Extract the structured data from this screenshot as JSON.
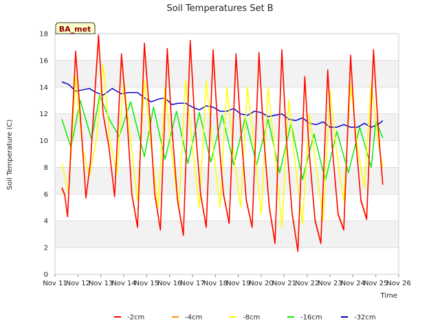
{
  "chart_data": {
    "type": "line",
    "title": "Soil Temperatures Set B",
    "xlabel": "Time",
    "ylabel": "Soil Temperature (C)",
    "badge": "BA_met",
    "xlim": [
      0,
      15
    ],
    "ylim": [
      0,
      18
    ],
    "x_tick_labels": [
      "Nov 11",
      "Nov 12",
      "Nov 13",
      "Nov 14",
      "Nov 15",
      "Nov 16",
      "Nov 17",
      "Nov 18",
      "Nov 19",
      "Nov 20",
      "Nov 21",
      "Nov 22",
      "Nov 23",
      "Nov 24",
      "Nov 25",
      "Nov 26"
    ],
    "y_ticks": [
      0,
      2,
      4,
      6,
      8,
      10,
      12,
      14,
      16,
      18
    ],
    "grid": true,
    "legend_position": "bottom",
    "x_unit": "days since Nov 11 00:00",
    "series": [
      {
        "name": "-2cm",
        "color": "#ff0000",
        "x": [
          0.3,
          0.42,
          0.55,
          0.68,
          0.9,
          1.1,
          1.35,
          1.55,
          1.9,
          2.1,
          2.35,
          2.6,
          2.9,
          3.15,
          3.35,
          3.6,
          3.9,
          4.15,
          4.35,
          4.6,
          4.9,
          5.1,
          5.35,
          5.6,
          5.9,
          6.1,
          6.35,
          6.6,
          6.9,
          7.1,
          7.35,
          7.6,
          7.9,
          8.1,
          8.35,
          8.6,
          8.9,
          9.1,
          9.35,
          9.6,
          9.9,
          10.1,
          10.35,
          10.6,
          10.9,
          11.1,
          11.35,
          11.6,
          11.9,
          12.1,
          12.35,
          12.6,
          12.9,
          13.1,
          13.35,
          13.6,
          13.9,
          14.1,
          14.3
        ],
        "y": [
          6.5,
          6.0,
          4.3,
          9.0,
          16.7,
          12.0,
          5.7,
          8.5,
          17.9,
          12.0,
          9.6,
          5.8,
          16.5,
          11.5,
          6.0,
          3.5,
          17.3,
          11.5,
          6.0,
          3.3,
          16.9,
          11.0,
          5.5,
          2.9,
          17.5,
          11.5,
          6.0,
          3.5,
          16.8,
          11.0,
          6.0,
          3.8,
          16.5,
          11.0,
          5.5,
          3.5,
          16.6,
          10.5,
          5.0,
          2.3,
          16.8,
          10.0,
          4.5,
          1.7,
          14.8,
          9.0,
          4.0,
          2.3,
          15.3,
          9.5,
          4.5,
          3.3,
          16.4,
          10.5,
          5.5,
          4.1,
          16.8,
          11.0,
          6.7
        ]
      },
      {
        "name": "-4cm",
        "color": "#ff8c00",
        "x": [
          0.3,
          0.42,
          0.55,
          0.68,
          0.9,
          1.1,
          1.35,
          1.55,
          1.9,
          2.1,
          2.35,
          2.6,
          2.9,
          3.15,
          3.35,
          3.6,
          3.9,
          4.15,
          4.35,
          4.6,
          4.9,
          5.1,
          5.35,
          5.6,
          5.9,
          6.1,
          6.35,
          6.6,
          6.9,
          7.1,
          7.35,
          7.6,
          7.9,
          8.1,
          8.35,
          8.6,
          8.9,
          9.1,
          9.35,
          9.6,
          9.9,
          10.1,
          10.35,
          10.6,
          10.9,
          11.1,
          11.35,
          11.6,
          11.9,
          12.1,
          12.35,
          12.6,
          12.9,
          13.1,
          13.35,
          13.6,
          13.9,
          14.1,
          14.3
        ],
        "y": [
          6.4,
          5.9,
          4.4,
          8.8,
          16.5,
          12.0,
          5.8,
          8.4,
          17.6,
          12.0,
          9.5,
          5.9,
          16.2,
          11.5,
          6.1,
          3.6,
          17.0,
          11.5,
          6.1,
          3.4,
          16.6,
          11.0,
          5.6,
          3.0,
          17.2,
          11.5,
          6.1,
          3.6,
          16.5,
          11.0,
          6.1,
          3.9,
          16.2,
          11.0,
          5.6,
          3.6,
          16.3,
          10.5,
          5.1,
          2.4,
          16.5,
          10.0,
          4.6,
          1.8,
          14.5,
          9.0,
          4.1,
          2.4,
          15.0,
          9.5,
          4.6,
          3.4,
          16.1,
          10.5,
          5.6,
          4.2,
          16.5,
          11.0,
          6.8
        ]
      },
      {
        "name": "-8cm",
        "color": "#ffff00",
        "x": [
          0.3,
          0.6,
          0.9,
          1.2,
          1.5,
          1.8,
          2.1,
          2.4,
          2.7,
          3.0,
          3.3,
          3.6,
          3.9,
          4.2,
          4.5,
          4.8,
          5.1,
          5.4,
          5.7,
          6.0,
          6.3,
          6.6,
          6.9,
          7.2,
          7.5,
          7.8,
          8.1,
          8.4,
          8.7,
          9.0,
          9.3,
          9.6,
          9.9,
          10.2,
          10.5,
          10.8,
          11.1,
          11.4,
          11.7,
          12.0,
          12.3,
          12.6,
          12.9,
          13.2,
          13.5,
          13.8,
          14.1,
          14.3
        ],
        "y": [
          8.3,
          6.0,
          14.8,
          9.5,
          7.3,
          10.0,
          15.7,
          10.0,
          7.5,
          14.5,
          10.0,
          5.5,
          14.5,
          9.5,
          5.0,
          14.0,
          9.0,
          4.8,
          14.5,
          9.5,
          5.0,
          14.5,
          9.5,
          5.0,
          14.0,
          9.0,
          5.0,
          14.0,
          9.5,
          4.5,
          14.0,
          9.0,
          3.5,
          13.0,
          8.0,
          3.8,
          12.0,
          8.0,
          4.0,
          13.8,
          9.0,
          5.5,
          14.2,
          9.5,
          6.5,
          14.3,
          10.0,
          8.0
        ]
      },
      {
        "name": "-16cm",
        "color": "#00ee00",
        "x": [
          0.3,
          0.7,
          1.1,
          1.6,
          1.95,
          2.4,
          2.8,
          3.3,
          3.9,
          4.3,
          4.8,
          5.3,
          5.8,
          6.3,
          6.8,
          7.3,
          7.8,
          8.3,
          8.8,
          9.3,
          9.8,
          10.3,
          10.8,
          11.3,
          11.8,
          12.3,
          12.8,
          13.3,
          13.8,
          14.0,
          14.3
        ],
        "y": [
          11.6,
          9.5,
          13.0,
          10.1,
          13.4,
          11.5,
          10.3,
          12.9,
          8.8,
          12.5,
          8.6,
          12.2,
          8.3,
          12.1,
          8.4,
          11.9,
          8.2,
          11.7,
          8.2,
          11.6,
          7.6,
          11.3,
          7.1,
          10.5,
          7.0,
          10.7,
          7.6,
          11.0,
          8.0,
          11.5,
          10.2
        ]
      },
      {
        "name": "-32cm",
        "color": "#0000cc",
        "x": [
          0.3,
          0.6,
          0.9,
          1.2,
          1.5,
          1.8,
          2.1,
          2.5,
          2.9,
          3.2,
          3.6,
          3.9,
          4.2,
          4.5,
          4.8,
          5.1,
          5.4,
          5.7,
          6.0,
          6.3,
          6.6,
          6.9,
          7.2,
          7.5,
          7.8,
          8.1,
          8.4,
          8.7,
          9.0,
          9.3,
          9.6,
          9.9,
          10.2,
          10.5,
          10.8,
          11.1,
          11.4,
          11.7,
          12.0,
          12.3,
          12.6,
          12.9,
          13.2,
          13.5,
          13.8,
          14.1,
          14.3
        ],
        "y": [
          14.4,
          14.2,
          13.7,
          13.8,
          13.9,
          13.6,
          13.4,
          13.9,
          13.5,
          13.6,
          13.6,
          13.2,
          12.9,
          13.1,
          13.2,
          12.7,
          12.8,
          12.8,
          12.5,
          12.3,
          12.6,
          12.5,
          12.2,
          12.2,
          12.4,
          12.0,
          11.9,
          12.2,
          12.1,
          11.8,
          11.9,
          12.0,
          11.6,
          11.5,
          11.7,
          11.3,
          11.2,
          11.4,
          11.0,
          11.0,
          11.2,
          11.0,
          11.0,
          11.3,
          11.0,
          11.2,
          11.5
        ]
      }
    ]
  }
}
